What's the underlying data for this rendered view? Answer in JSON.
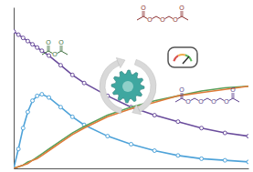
{
  "chart_data": {
    "type": "line",
    "xlim": [
      0,
      100
    ],
    "ylim": [
      0,
      100
    ],
    "tick_labels": false,
    "grid": false,
    "x": [
      0,
      2,
      4,
      6,
      8,
      10,
      12,
      15,
      20,
      25,
      30,
      40,
      50,
      60,
      70,
      80,
      90,
      100
    ],
    "series": [
      {
        "color": "#4fa3d9",
        "marker": "circle",
        "values": [
          0,
          12,
          25,
          35,
          42,
          45,
          46,
          44,
          38,
          32,
          27,
          20,
          15,
          11,
          8,
          6,
          5,
          4
        ]
      },
      {
        "color": "#6a4c9c",
        "marker": "circle",
        "values": [
          85,
          83,
          81,
          79,
          77,
          75,
          73,
          70,
          64,
          58,
          53,
          45,
          38,
          33,
          29,
          25,
          22,
          20
        ]
      },
      {
        "color": "#5aa05a",
        "marker": "none",
        "values": [
          0,
          1,
          2,
          4,
          5,
          7,
          9,
          12,
          17,
          22,
          26,
          33,
          38,
          42,
          45,
          48,
          50,
          51
        ]
      },
      {
        "color": "#e07b39",
        "marker": "none",
        "values": [
          0,
          1,
          2,
          3,
          5,
          6,
          8,
          11,
          16,
          21,
          25,
          32,
          37,
          41,
          45,
          47,
          49,
          51
        ]
      }
    ]
  },
  "atom_label": "O"
}
